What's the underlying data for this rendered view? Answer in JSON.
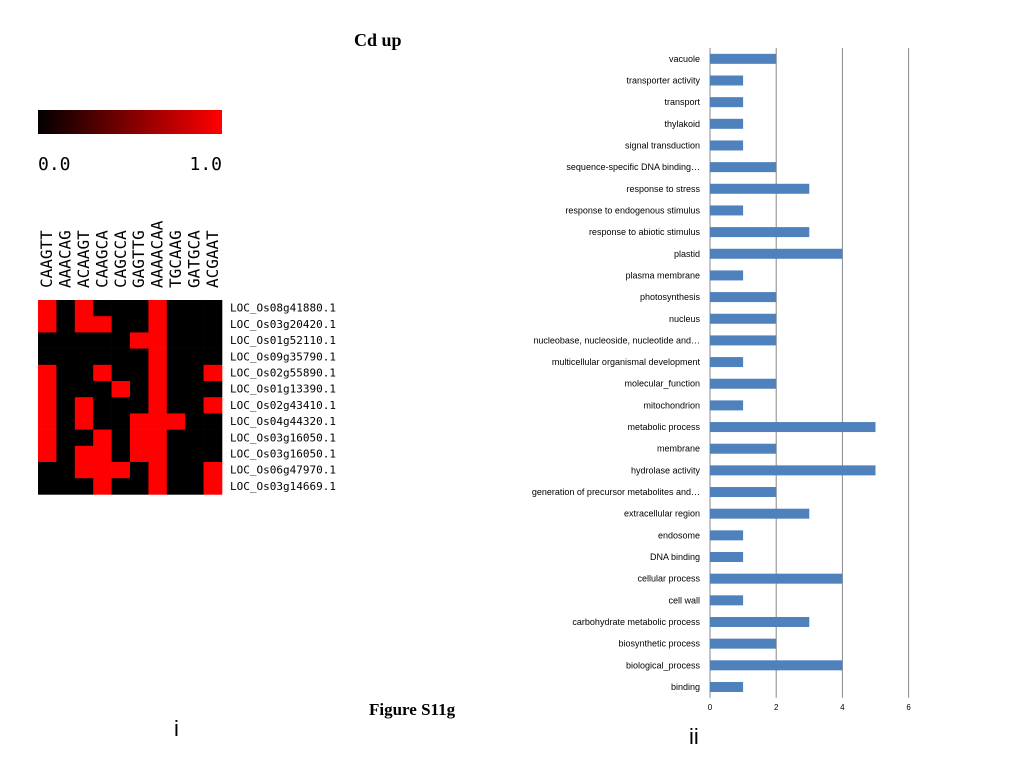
{
  "title": "Cd up",
  "caption": "Figure S11g",
  "panel_labels": {
    "left": "i",
    "right": "ii"
  },
  "heatmap": {
    "color_scale": {
      "low": "#000000",
      "high": "#ff0000",
      "min_label": "0.0",
      "max_label": "1.0"
    },
    "columns": [
      "CAAGTT",
      "AAACAG",
      "ACAAGT",
      "CAAGCA",
      "CAGCCA",
      "GAGTTG",
      "AAAACAA",
      "TGCAAG",
      "GATGCA",
      "ACGAAT"
    ],
    "rows": [
      "LOC_Os08g41880.1",
      "LOC_Os03g20420.1",
      "LOC_Os01g52110.1",
      "LOC_Os09g35790.1",
      "LOC_Os02g55890.1",
      "LOC_Os01g13390.1",
      "LOC_Os02g43410.1",
      "LOC_Os04g44320.1",
      "LOC_Os03g16050.1",
      "LOC_Os03g16050.1",
      "LOC_Os06g47970.1",
      "LOC_Os03g14669.1"
    ],
    "matrix": [
      [
        1,
        0,
        1,
        0,
        0,
        0,
        1,
        0,
        0,
        0
      ],
      [
        1,
        0,
        1,
        1,
        0,
        0,
        1,
        0,
        0,
        0
      ],
      [
        0,
        0,
        0,
        0,
        0,
        1,
        1,
        0,
        0,
        0
      ],
      [
        0,
        0,
        0,
        0,
        0,
        0,
        1,
        0,
        0,
        0
      ],
      [
        1,
        0,
        0,
        1,
        0,
        0,
        1,
        0,
        0,
        1
      ],
      [
        1,
        0,
        0,
        0,
        1,
        0,
        1,
        0,
        0,
        0
      ],
      [
        1,
        0,
        1,
        0,
        0,
        0,
        1,
        0,
        0,
        1
      ],
      [
        1,
        0,
        1,
        0,
        0,
        1,
        1,
        1,
        0,
        0
      ],
      [
        1,
        0,
        0,
        1,
        0,
        1,
        1,
        0,
        0,
        0
      ],
      [
        1,
        0,
        1,
        1,
        0,
        1,
        1,
        0,
        0,
        0
      ],
      [
        0,
        0,
        1,
        1,
        1,
        0,
        1,
        0,
        0,
        1
      ],
      [
        0,
        0,
        0,
        1,
        0,
        0,
        1,
        0,
        0,
        1
      ]
    ]
  },
  "chart_data": {
    "type": "bar",
    "orientation": "horizontal",
    "color": "#4f81bd",
    "categories": [
      "vacuole",
      "transporter activity",
      "transport",
      "thylakoid",
      "signal transduction",
      "sequence-specific DNA binding…",
      "response to stress",
      "response to endogenous stimulus",
      "response to abiotic stimulus",
      "plastid",
      "plasma membrane",
      "photosynthesis",
      "nucleus",
      "nucleobase, nucleoside, nucleotide and…",
      "multicellular organismal development",
      "molecular_function",
      "mitochondrion",
      "metabolic process",
      "membrane",
      "hydrolase activity",
      "generation of precursor metabolites and…",
      "extracellular region",
      "endosome",
      "DNA binding",
      "cellular process",
      "cell wall",
      "carbohydrate metabolic process",
      "biosynthetic process",
      "biological_process",
      "binding"
    ],
    "values": [
      2,
      1,
      1,
      1,
      1,
      2,
      3,
      1,
      3,
      4,
      1,
      2,
      2,
      2,
      1,
      2,
      1,
      5,
      2,
      5,
      2,
      3,
      1,
      1,
      4,
      1,
      3,
      2,
      4,
      1
    ],
    "xlim": [
      0,
      6
    ],
    "xticks": [
      0,
      2,
      4,
      6
    ],
    "grid": true
  }
}
